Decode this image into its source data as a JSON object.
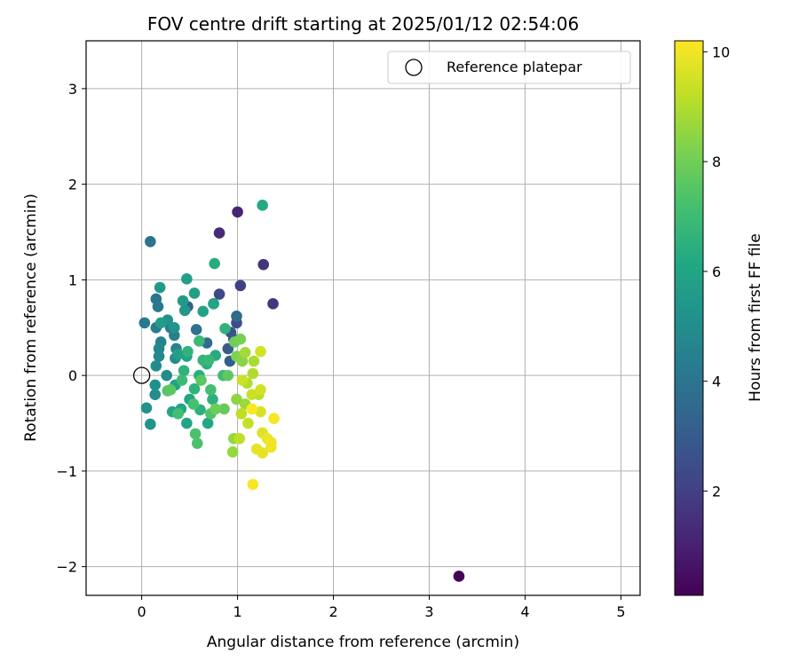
{
  "chart_data": {
    "type": "scatter",
    "title": "FOV centre drift starting at 2025/01/12 02:54:06",
    "xlabel": "Angular distance from reference (arcmin)",
    "ylabel": "Rotation from reference (arcmin)",
    "xlim": [
      -0.58,
      5.2
    ],
    "ylim": [
      -2.3,
      3.5
    ],
    "xticks": [
      0,
      1,
      2,
      3,
      4,
      5
    ],
    "yticks": [
      -2,
      -1,
      0,
      1,
      2,
      3
    ],
    "xtick_labels": [
      "0",
      "1",
      "2",
      "3",
      "4",
      "5"
    ],
    "ytick_labels": [
      "−2",
      "−1",
      "0",
      "1",
      "2",
      "3"
    ],
    "grid": true,
    "legend": {
      "placement": "top-right",
      "entries": [
        "Reference platepar"
      ]
    },
    "reference_point": {
      "x": 0,
      "y": 0,
      "marker": "open-circle"
    },
    "colorbar": {
      "label": "Hours from first FF file",
      "min": 0.1,
      "max": 10.2,
      "ticks": [
        2,
        4,
        6,
        8,
        10
      ],
      "tick_labels": [
        "2",
        "4",
        "6",
        "8",
        "10"
      ],
      "colormap": "viridis"
    },
    "series": [
      {
        "points": [
          {
            "x": 3.31,
            "y": -2.1,
            "c": 0.2
          },
          {
            "x": 1.0,
            "y": 1.71,
            "c": 1.1
          },
          {
            "x": 0.81,
            "y": 1.49,
            "c": 1.3
          },
          {
            "x": 1.27,
            "y": 1.16,
            "c": 1.6
          },
          {
            "x": 1.37,
            "y": 0.75,
            "c": 1.7
          },
          {
            "x": 1.03,
            "y": 0.94,
            "c": 2.0
          },
          {
            "x": 0.81,
            "y": 0.85,
            "c": 2.3
          },
          {
            "x": 0.99,
            "y": 0.55,
            "c": 2.5
          },
          {
            "x": 0.93,
            "y": 0.45,
            "c": 2.7
          },
          {
            "x": 0.96,
            "y": 0.38,
            "c": 2.8
          },
          {
            "x": 0.9,
            "y": 0.28,
            "c": 3.0
          },
          {
            "x": 0.92,
            "y": 0.15,
            "c": 3.1
          },
          {
            "x": 0.48,
            "y": 0.72,
            "c": 3.2
          },
          {
            "x": 0.75,
            "y": 0.75,
            "c": 3.4
          },
          {
            "x": 0.99,
            "y": 0.62,
            "c": 3.6
          },
          {
            "x": 0.68,
            "y": 0.34,
            "c": 3.7
          },
          {
            "x": 0.57,
            "y": 0.48,
            "c": 3.8
          },
          {
            "x": 0.09,
            "y": 1.4,
            "c": 3.9
          },
          {
            "x": 0.15,
            "y": 0.8,
            "c": 4.0
          },
          {
            "x": 0.17,
            "y": 0.72,
            "c": 4.1
          },
          {
            "x": 0.03,
            "y": 0.55,
            "c": 4.2
          },
          {
            "x": 0.15,
            "y": 0.5,
            "c": 4.3
          },
          {
            "x": 0.3,
            "y": 0.5,
            "c": 4.4
          },
          {
            "x": 0.34,
            "y": 0.42,
            "c": 4.5
          },
          {
            "x": 0.2,
            "y": 0.35,
            "c": 4.6
          },
          {
            "x": 0.18,
            "y": 0.28,
            "c": 4.7
          },
          {
            "x": 0.36,
            "y": 0.28,
            "c": 4.6
          },
          {
            "x": 0.18,
            "y": 0.2,
            "c": 4.8
          },
          {
            "x": 0.35,
            "y": 0.18,
            "c": 4.9
          },
          {
            "x": 0.15,
            "y": 0.1,
            "c": 5.0
          },
          {
            "x": 0.26,
            "y": 0.0,
            "c": 4.9
          },
          {
            "x": 0.14,
            "y": -0.1,
            "c": 5.1
          },
          {
            "x": 0.14,
            "y": -0.2,
            "c": 5.0
          },
          {
            "x": 0.05,
            "y": -0.34,
            "c": 5.2
          },
          {
            "x": 0.09,
            "y": -0.51,
            "c": 5.3
          },
          {
            "x": 0.27,
            "y": 0.58,
            "c": 5.2
          },
          {
            "x": 0.34,
            "y": 0.5,
            "c": 5.3
          },
          {
            "x": 0.45,
            "y": 0.68,
            "c": 5.4
          },
          {
            "x": 0.19,
            "y": 0.92,
            "c": 5.5
          },
          {
            "x": 0.43,
            "y": 0.78,
            "c": 5.6
          },
          {
            "x": 0.55,
            "y": 0.86,
            "c": 5.7
          },
          {
            "x": 0.47,
            "y": 1.01,
            "c": 5.8
          },
          {
            "x": 0.64,
            "y": 0.67,
            "c": 5.9
          },
          {
            "x": 0.2,
            "y": 0.55,
            "c": 5.7
          },
          {
            "x": 0.38,
            "y": 0.22,
            "c": 5.8
          },
          {
            "x": 0.47,
            "y": 0.2,
            "c": 5.9
          },
          {
            "x": 0.35,
            "y": -0.1,
            "c": 5.9
          },
          {
            "x": 0.5,
            "y": -0.25,
            "c": 6.0
          },
          {
            "x": 0.41,
            "y": -0.35,
            "c": 6.0
          },
          {
            "x": 0.32,
            "y": -0.38,
            "c": 6.1
          },
          {
            "x": 0.47,
            "y": -0.5,
            "c": 6.0
          },
          {
            "x": 0.69,
            "y": -0.5,
            "c": 6.1
          },
          {
            "x": 0.75,
            "y": 0.75,
            "c": 6.0
          },
          {
            "x": 1.26,
            "y": 1.78,
            "c": 6.2
          },
          {
            "x": 0.76,
            "y": 1.17,
            "c": 6.3
          },
          {
            "x": 0.77,
            "y": 0.21,
            "c": 6.3
          },
          {
            "x": 0.68,
            "y": 0.12,
            "c": 6.4
          },
          {
            "x": 0.6,
            "y": 0.0,
            "c": 6.4
          },
          {
            "x": 0.74,
            "y": -0.25,
            "c": 6.5
          },
          {
            "x": 0.61,
            "y": -0.36,
            "c": 6.5
          },
          {
            "x": 0.55,
            "y": -0.14,
            "c": 6.6
          },
          {
            "x": 0.44,
            "y": 0.05,
            "c": 6.6
          },
          {
            "x": 0.48,
            "y": 0.25,
            "c": 6.6
          },
          {
            "x": 0.87,
            "y": 0.49,
            "c": 6.6
          },
          {
            "x": 0.64,
            "y": 0.16,
            "c": 6.7
          },
          {
            "x": 0.7,
            "y": 0.16,
            "c": 6.8
          },
          {
            "x": 0.6,
            "y": 0.36,
            "c": 6.9
          },
          {
            "x": 0.85,
            "y": 0.0,
            "c": 7.0
          },
          {
            "x": 0.42,
            "y": -0.05,
            "c": 7.0
          },
          {
            "x": 0.72,
            "y": -0.15,
            "c": 7.1
          },
          {
            "x": 0.54,
            "y": -0.3,
            "c": 7.2
          },
          {
            "x": 0.38,
            "y": -0.4,
            "c": 7.1
          },
          {
            "x": 0.56,
            "y": -0.61,
            "c": 7.3
          },
          {
            "x": 0.58,
            "y": -0.71,
            "c": 7.3
          },
          {
            "x": 0.72,
            "y": -0.4,
            "c": 7.4
          },
          {
            "x": 0.27,
            "y": -0.16,
            "c": 7.5
          },
          {
            "x": 0.3,
            "y": -0.15,
            "c": 7.6
          },
          {
            "x": 0.62,
            "y": -0.05,
            "c": 7.6
          },
          {
            "x": 0.9,
            "y": 0.0,
            "c": 7.7
          },
          {
            "x": 0.86,
            "y": -0.35,
            "c": 7.8
          },
          {
            "x": 0.77,
            "y": -0.35,
            "c": 7.9
          },
          {
            "x": 0.97,
            "y": 0.35,
            "c": 8.0
          },
          {
            "x": 1.03,
            "y": 0.38,
            "c": 8.1
          },
          {
            "x": 0.99,
            "y": 0.2,
            "c": 8.2
          },
          {
            "x": 1.03,
            "y": 0.18,
            "c": 8.3
          },
          {
            "x": 1.05,
            "y": 0.15,
            "c": 8.4
          },
          {
            "x": 0.99,
            "y": -0.25,
            "c": 8.5
          },
          {
            "x": 0.95,
            "y": -0.8,
            "c": 8.6
          },
          {
            "x": 0.96,
            "y": -0.66,
            "c": 8.6
          },
          {
            "x": 1.08,
            "y": -0.3,
            "c": 8.7
          },
          {
            "x": 1.08,
            "y": 0.24,
            "c": 8.8
          },
          {
            "x": 1.17,
            "y": 0.15,
            "c": 8.9
          },
          {
            "x": 1.16,
            "y": 0.02,
            "c": 9.0
          },
          {
            "x": 1.1,
            "y": -0.08,
            "c": 9.0
          },
          {
            "x": 1.22,
            "y": -0.2,
            "c": 9.1
          },
          {
            "x": 1.04,
            "y": -0.4,
            "c": 9.2
          },
          {
            "x": 1.02,
            "y": -0.66,
            "c": 9.2
          },
          {
            "x": 1.11,
            "y": -0.5,
            "c": 9.3
          },
          {
            "x": 1.05,
            "y": -0.05,
            "c": 9.4
          },
          {
            "x": 1.15,
            "y": -0.2,
            "c": 9.4
          },
          {
            "x": 1.24,
            "y": 0.25,
            "c": 9.5
          },
          {
            "x": 1.24,
            "y": -0.15,
            "c": 9.5
          },
          {
            "x": 1.24,
            "y": -0.38,
            "c": 9.6
          },
          {
            "x": 1.26,
            "y": -0.6,
            "c": 9.7
          },
          {
            "x": 1.26,
            "y": -0.81,
            "c": 9.8
          },
          {
            "x": 1.2,
            "y": -0.77,
            "c": 9.8
          },
          {
            "x": 1.31,
            "y": -0.66,
            "c": 9.9
          },
          {
            "x": 1.35,
            "y": -0.7,
            "c": 10.0
          },
          {
            "x": 1.35,
            "y": -0.75,
            "c": 10.0
          },
          {
            "x": 1.38,
            "y": -0.45,
            "c": 10.1
          },
          {
            "x": 1.16,
            "y": -1.14,
            "c": 10.1
          },
          {
            "x": 1.15,
            "y": -0.35,
            "c": 10.2
          }
        ]
      }
    ]
  }
}
